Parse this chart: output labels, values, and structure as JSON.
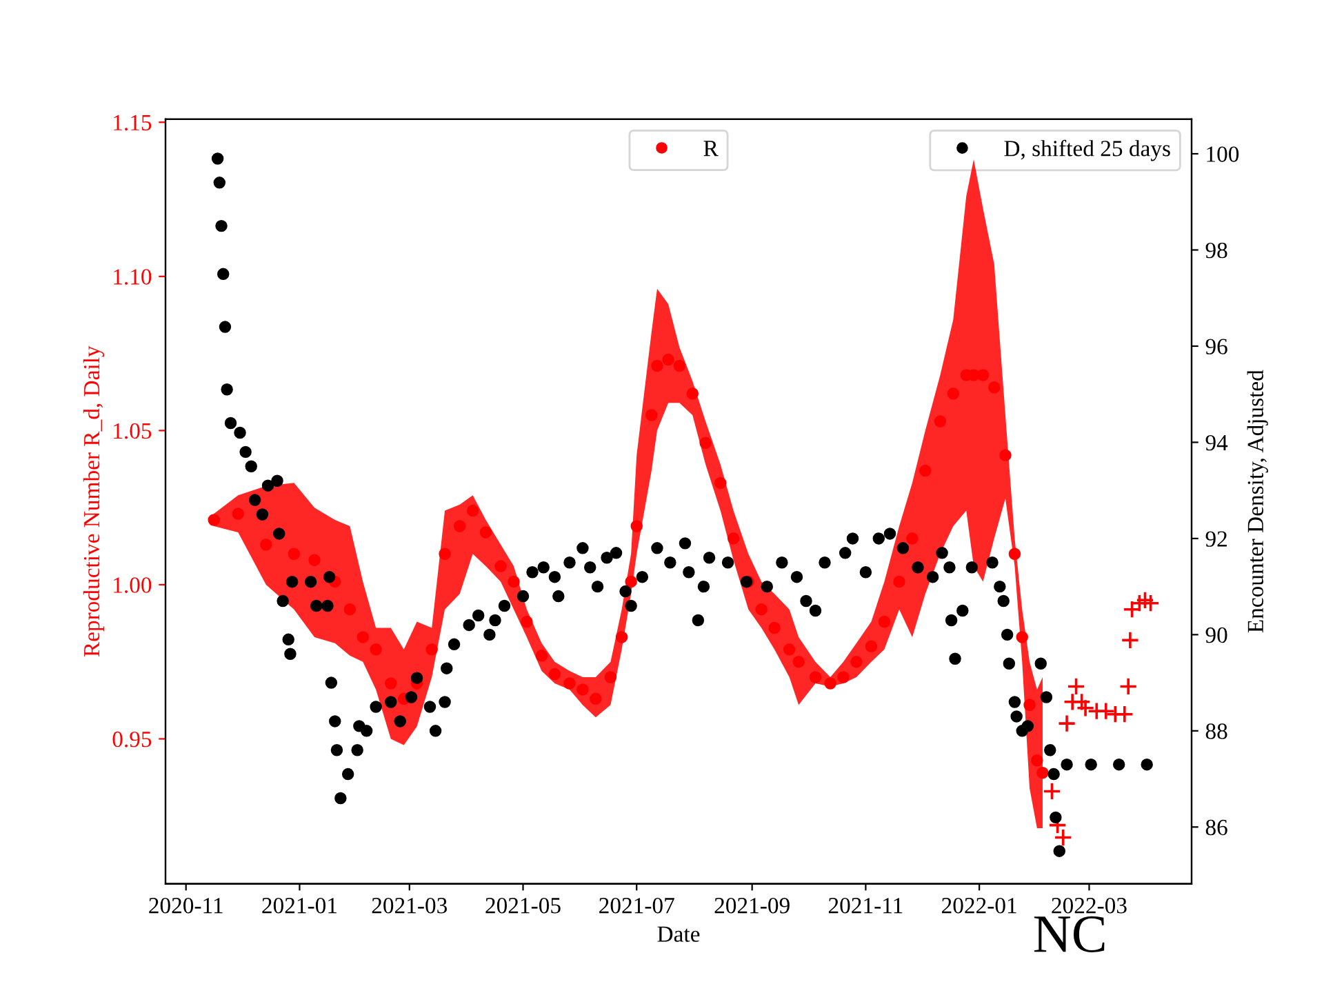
{
  "chart_data": {
    "type": "scatter",
    "xlabel": "Date",
    "ylabel": "Reproductive Number R_d, Daily",
    "y2label": "Encounter Density, Adjusted",
    "annotations": [
      "NC"
    ],
    "xlim": [
      "2020-10-21",
      "2022-04-25"
    ],
    "xticks": [
      {
        "value": "2020-11-01",
        "label": "2020-11"
      },
      {
        "value": "2021-01-01",
        "label": "2021-01"
      },
      {
        "value": "2021-03-01",
        "label": "2021-03"
      },
      {
        "value": "2021-05-01",
        "label": "2021-05"
      },
      {
        "value": "2021-07-01",
        "label": "2021-07"
      },
      {
        "value": "2021-09-01",
        "label": "2021-09"
      },
      {
        "value": "2021-11-01",
        "label": "2021-11"
      },
      {
        "value": "2022-01-01",
        "label": "2022-01"
      },
      {
        "value": "2022-03-01",
        "label": "2022-03"
      }
    ],
    "ylim": [
      0.903,
      1.151
    ],
    "yticks": [
      {
        "value": 0.95,
        "label": "0.95"
      },
      {
        "value": 1.0,
        "label": "1.00"
      },
      {
        "value": 1.05,
        "label": "1.05"
      },
      {
        "value": 1.1,
        "label": "1.10"
      },
      {
        "value": 1.15,
        "label": "1.15"
      }
    ],
    "y2lim": [
      84.82,
      100.72
    ],
    "y2ticks": [
      86,
      88,
      90,
      92,
      94,
      96,
      98,
      100
    ],
    "legend": "top",
    "grid": false,
    "marker": "circle",
    "series": [
      {
        "name": "R",
        "color": "#ff0000",
        "x": [
          "2020-11-16",
          "2020-11-29",
          "2020-12-14",
          "2020-12-29",
          "2021-01-09",
          "2021-01-20",
          "2021-01-28",
          "2021-02-04",
          "2021-02-11",
          "2021-02-19",
          "2021-02-26",
          "2021-03-05",
          "2021-03-13",
          "2021-03-20",
          "2021-03-28",
          "2021-04-04",
          "2021-04-11",
          "2021-04-19",
          "2021-04-26",
          "2021-05-03",
          "2021-05-11",
          "2021-05-18",
          "2021-05-26",
          "2021-06-02",
          "2021-06-09",
          "2021-06-17",
          "2021-06-23",
          "2021-06-28",
          "2021-07-01",
          "2021-07-09",
          "2021-07-12",
          "2021-07-18",
          "2021-07-24",
          "2021-07-31",
          "2021-08-07",
          "2021-08-15",
          "2021-08-22",
          "2021-08-30",
          "2021-09-06",
          "2021-09-13",
          "2021-09-21",
          "2021-09-26",
          "2021-10-05",
          "2021-10-13",
          "2021-10-20",
          "2021-10-27",
          "2021-11-04",
          "2021-11-11",
          "2021-11-19",
          "2021-11-26",
          "2021-12-03",
          "2021-12-11",
          "2021-12-18",
          "2021-12-25",
          "2021-12-29",
          "2022-01-03",
          "2022-01-09",
          "2022-01-15",
          "2022-01-20",
          "2022-01-24",
          "2022-01-28",
          "2022-02-01",
          "2022-02-04"
        ],
        "values": [
          1.021,
          1.023,
          1.013,
          1.01,
          1.008,
          1.001,
          0.992,
          0.983,
          0.979,
          0.968,
          0.963,
          0.968,
          0.979,
          1.01,
          1.019,
          1.024,
          1.017,
          1.006,
          1.001,
          0.988,
          0.977,
          0.971,
          0.968,
          0.966,
          0.963,
          0.97,
          0.983,
          1.001,
          1.019,
          1.055,
          1.071,
          1.073,
          1.071,
          1.062,
          1.046,
          1.033,
          1.015,
          1.001,
          0.992,
          0.986,
          0.979,
          0.975,
          0.97,
          0.968,
          0.97,
          0.975,
          0.98,
          0.988,
          1.001,
          1.015,
          1.037,
          1.053,
          1.062,
          1.068,
          1.068,
          1.068,
          1.064,
          1.042,
          1.01,
          0.983,
          0.961,
          0.943,
          0.939
        ],
        "upper": [
          1.023,
          1.029,
          1.032,
          1.033,
          1.025,
          1.021,
          1.019,
          1.001,
          0.986,
          0.986,
          0.979,
          0.988,
          0.986,
          1.024,
          1.026,
          1.029,
          1.021,
          1.013,
          1.006,
          0.992,
          0.981,
          0.975,
          0.972,
          0.97,
          0.97,
          0.975,
          0.992,
          1.01,
          1.042,
          1.082,
          1.096,
          1.091,
          1.077,
          1.066,
          1.053,
          1.039,
          1.024,
          1.01,
          1.001,
          0.997,
          0.992,
          0.983,
          0.975,
          0.97,
          0.975,
          0.981,
          0.988,
          1.001,
          1.019,
          1.033,
          1.05,
          1.068,
          1.086,
          1.126,
          1.138,
          1.122,
          1.104,
          1.055,
          1.015,
          0.992,
          0.975,
          0.966,
          0.97
        ],
        "lower": [
          1.019,
          1.017,
          1.0,
          0.992,
          0.983,
          0.981,
          0.977,
          0.975,
          0.966,
          0.95,
          0.948,
          0.954,
          0.97,
          0.992,
          0.997,
          1.01,
          1.006,
          1.001,
          0.992,
          0.983,
          0.972,
          0.968,
          0.966,
          0.961,
          0.957,
          0.961,
          0.979,
          0.997,
          1.01,
          1.037,
          1.05,
          1.059,
          1.059,
          1.055,
          1.039,
          1.024,
          1.008,
          0.992,
          0.986,
          0.979,
          0.97,
          0.961,
          0.968,
          0.967,
          0.968,
          0.97,
          0.975,
          0.979,
          0.992,
          0.983,
          0.997,
          1.01,
          1.019,
          1.024,
          1.006,
          1.001,
          1.015,
          1.028,
          1.006,
          0.975,
          0.934,
          0.921,
          0.921
        ]
      },
      {
        "marker": "cross",
        "color": "#ff0000",
        "x": [
          "2022-02-09",
          "2022-02-12",
          "2022-02-15",
          "2022-02-17",
          "2022-02-20",
          "2022-02-22",
          "2022-02-25",
          "2022-02-27",
          "2022-03-05",
          "2022-03-10",
          "2022-03-15",
          "2022-03-20",
          "2022-03-22",
          "2022-03-23",
          "2022-03-24",
          "2022-03-28",
          "2022-03-31",
          "2022-04-03"
        ],
        "values": [
          0.933,
          0.922,
          0.918,
          0.955,
          0.962,
          0.967,
          0.962,
          0.96,
          0.959,
          0.959,
          0.958,
          0.958,
          0.967,
          0.982,
          0.992,
          0.994,
          0.995,
          0.994
        ]
      },
      {
        "name": "D, shifted 25 days",
        "color": "#000000",
        "axis": "y2",
        "x": [
          "2020-11-18",
          "2020-11-19",
          "2020-11-20",
          "2020-11-21",
          "2020-11-22",
          "2020-11-23",
          "2020-11-25",
          "2020-11-30",
          "2020-12-03",
          "2020-12-06",
          "2020-12-08",
          "2020-12-12",
          "2020-12-15",
          "2020-12-20",
          "2020-12-21",
          "2020-12-23",
          "2020-12-26",
          "2020-12-27",
          "2020-12-28",
          "2021-01-07",
          "2021-01-10",
          "2021-01-16",
          "2021-01-17",
          "2021-01-18",
          "2021-01-20",
          "2021-01-21",
          "2021-01-23",
          "2021-01-27",
          "2021-02-01",
          "2021-02-02",
          "2021-02-06",
          "2021-02-11",
          "2021-02-19",
          "2021-02-24",
          "2021-03-02",
          "2021-03-05",
          "2021-03-12",
          "2021-03-15",
          "2021-03-20",
          "2021-03-21",
          "2021-03-25",
          "2021-04-02",
          "2021-04-07",
          "2021-04-13",
          "2021-04-16",
          "2021-04-21",
          "2021-05-01",
          "2021-05-06",
          "2021-05-12",
          "2021-05-18",
          "2021-05-20",
          "2021-05-26",
          "2021-06-02",
          "2021-06-06",
          "2021-06-10",
          "2021-06-15",
          "2021-06-20",
          "2021-06-25",
          "2021-06-28",
          "2021-07-04",
          "2021-07-12",
          "2021-07-19",
          "2021-07-27",
          "2021-07-29",
          "2021-08-03",
          "2021-08-06",
          "2021-08-09",
          "2021-08-19",
          "2021-08-29",
          "2021-09-09",
          "2021-09-17",
          "2021-09-25",
          "2021-09-30",
          "2021-10-05",
          "2021-10-10",
          "2021-10-21",
          "2021-10-25",
          "2021-11-01",
          "2021-11-08",
          "2021-11-14",
          "2021-11-21",
          "2021-11-29",
          "2021-12-07",
          "2021-12-12",
          "2021-12-16",
          "2021-12-17",
          "2021-12-19",
          "2021-12-23",
          "2021-12-28",
          "2022-01-08",
          "2022-01-12",
          "2022-01-14",
          "2022-01-16",
          "2022-01-17",
          "2022-01-20",
          "2022-01-21",
          "2022-01-24",
          "2022-01-27",
          "2022-02-03",
          "2022-02-06",
          "2022-02-08",
          "2022-02-10",
          "2022-02-11",
          "2022-02-13",
          "2022-02-17",
          "2022-03-02",
          "2022-03-17",
          "2022-04-01"
        ],
        "values": [
          99.9,
          99.4,
          98.5,
          97.5,
          96.4,
          95.1,
          94.4,
          94.2,
          93.8,
          93.5,
          92.8,
          92.5,
          93.1,
          93.2,
          92.1,
          90.7,
          89.9,
          89.6,
          91.1,
          91.1,
          90.6,
          90.6,
          91.2,
          89.0,
          88.2,
          87.6,
          86.6,
          87.1,
          87.6,
          88.1,
          88.0,
          88.5,
          88.6,
          88.2,
          88.7,
          89.1,
          88.5,
          88.0,
          88.6,
          89.3,
          89.8,
          90.2,
          90.4,
          90.0,
          90.3,
          90.6,
          90.8,
          91.3,
          91.4,
          91.2,
          90.8,
          91.5,
          91.8,
          91.4,
          91.0,
          91.6,
          91.7,
          90.9,
          90.6,
          91.2,
          91.8,
          91.5,
          91.9,
          91.3,
          90.3,
          91.0,
          91.6,
          91.5,
          91.1,
          91.0,
          91.5,
          91.2,
          90.7,
          90.5,
          91.5,
          91.7,
          92.0,
          91.3,
          92.0,
          92.1,
          91.8,
          91.4,
          91.2,
          91.7,
          91.4,
          90.3,
          89.5,
          90.5,
          91.4,
          91.5,
          91.0,
          90.7,
          90.0,
          89.4,
          88.6,
          88.3,
          88.0,
          88.1,
          89.4,
          88.7,
          87.6,
          87.1,
          86.2,
          85.5,
          87.3,
          87.3,
          87.3,
          87.3
        ]
      }
    ]
  }
}
